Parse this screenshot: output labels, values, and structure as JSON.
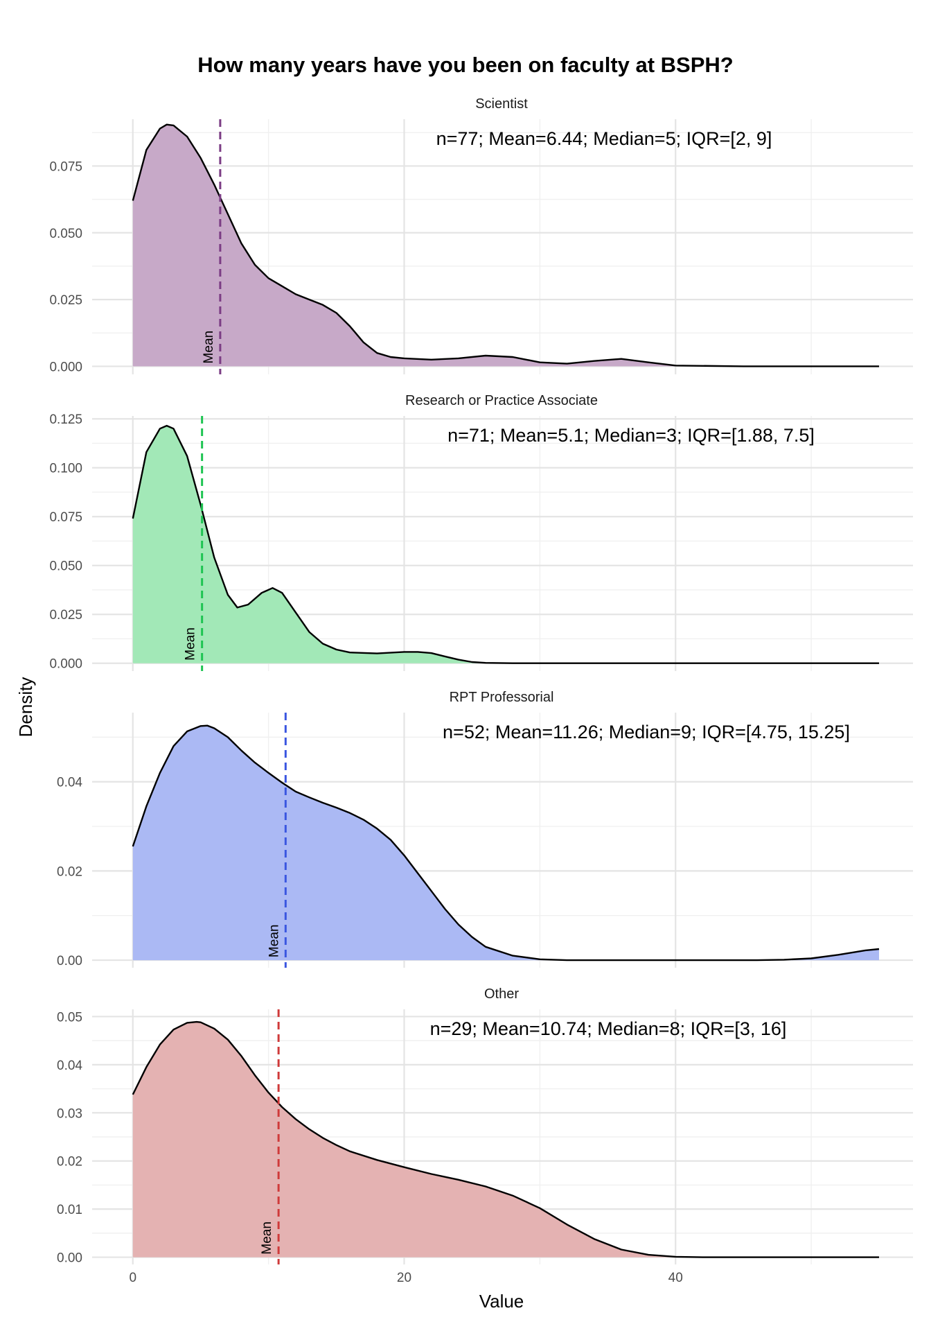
{
  "chart_data": {
    "type": "area",
    "title": "How many years have you been on faculty at BSPH?",
    "xlabel": "Value",
    "ylabel": "Density",
    "xlim": [
      -3,
      57.5
    ],
    "x_ticks": [
      0,
      20,
      40
    ],
    "x_tick_labels": [
      "0",
      "20",
      "40"
    ],
    "grid": true,
    "mean_label": "Mean",
    "panels": [
      {
        "name": "Scientist",
        "stats": "n=77; Mean=6.44; Median=5; IQR=[2, 9]",
        "color": "#7b3c84",
        "fill": "#c7a9c8",
        "mean": 6.44,
        "ylim": [
          -0.003,
          0.0925
        ],
        "y_ticks": [
          0,
          0.025,
          0.05,
          0.075
        ],
        "y_tick_labels": [
          "0.000",
          "0.025",
          "0.050",
          "0.075"
        ],
        "x": [
          0,
          1,
          2,
          2.5,
          3,
          4,
          5,
          6,
          7,
          8,
          9,
          10,
          11,
          12,
          13,
          14,
          15,
          16,
          17,
          18,
          19,
          20,
          22,
          24,
          26,
          28,
          30,
          32,
          34,
          36,
          38,
          40,
          45,
          50,
          55
        ],
        "y": [
          0.062,
          0.081,
          0.089,
          0.0905,
          0.0902,
          0.086,
          0.078,
          0.068,
          0.057,
          0.046,
          0.038,
          0.033,
          0.03,
          0.027,
          0.025,
          0.023,
          0.02,
          0.015,
          0.009,
          0.005,
          0.0035,
          0.003,
          0.0025,
          0.003,
          0.004,
          0.0035,
          0.0015,
          0.001,
          0.002,
          0.0028,
          0.0015,
          0.0003,
          0,
          0,
          0
        ]
      },
      {
        "name": "Research or Practice Associate",
        "stats": "n=71; Mean=5.1; Median=3; IQR=[1.88, 7.5]",
        "color": "#1ec452",
        "fill": "#a2e8b7",
        "mean": 5.1,
        "ylim": [
          -0.004,
          0.1265
        ],
        "y_ticks": [
          0,
          0.025,
          0.05,
          0.075,
          0.1,
          0.125
        ],
        "y_tick_labels": [
          "0.000",
          "0.025",
          "0.050",
          "0.075",
          "0.100",
          "0.125"
        ],
        "x": [
          0,
          1,
          2,
          2.5,
          3,
          4,
          5,
          6,
          7,
          7.7,
          8.5,
          9.5,
          10.3,
          11,
          12,
          13,
          14,
          15,
          16,
          18,
          20,
          21,
          22,
          23,
          24,
          25,
          26,
          28,
          30,
          35,
          40,
          45,
          50,
          55
        ],
        "y": [
          0.074,
          0.108,
          0.12,
          0.1215,
          0.12,
          0.106,
          0.081,
          0.054,
          0.035,
          0.0285,
          0.03,
          0.036,
          0.0385,
          0.036,
          0.026,
          0.016,
          0.01,
          0.007,
          0.0055,
          0.005,
          0.0058,
          0.0058,
          0.0052,
          0.0035,
          0.0018,
          0.0006,
          0.0002,
          0,
          0,
          0,
          0,
          0,
          0,
          0
        ]
      },
      {
        "name": "RPT Professorial",
        "stats": "n=52; Mean=11.26; Median=9; IQR=[4.75, 15.25]",
        "color": "#3a56e0",
        "fill": "#abb9f4",
        "mean": 11.26,
        "ylim": [
          -0.0017,
          0.0555
        ],
        "y_ticks": [
          0,
          0.02,
          0.04
        ],
        "y_tick_labels": [
          "0.00",
          "0.02",
          "0.04"
        ],
        "x": [
          0,
          1,
          2,
          3,
          4,
          5,
          5.5,
          6,
          7,
          8,
          9,
          10,
          11,
          12,
          13,
          14,
          15,
          16,
          17,
          18,
          19,
          20,
          21,
          22,
          23,
          24,
          25,
          26,
          28,
          30,
          32,
          34,
          36,
          38,
          40,
          42,
          44,
          46,
          48,
          50,
          52,
          54,
          55
        ],
        "y": [
          0.0255,
          0.0345,
          0.042,
          0.048,
          0.0513,
          0.0525,
          0.0526,
          0.052,
          0.05,
          0.047,
          0.0443,
          0.042,
          0.0398,
          0.0378,
          0.0365,
          0.0353,
          0.0342,
          0.033,
          0.0315,
          0.0295,
          0.027,
          0.0235,
          0.0195,
          0.0155,
          0.0115,
          0.008,
          0.0052,
          0.003,
          0.001,
          0.0002,
          0,
          0,
          0,
          0,
          0,
          0,
          0,
          0,
          0.0001,
          0.0004,
          0.0012,
          0.0022,
          0.0025
        ]
      },
      {
        "name": "Other",
        "stats": "n=29; Mean=10.74; Median=8; IQR=[3, 16]",
        "color": "#cf3a3a",
        "fill": "#e4b2b2",
        "mean": 10.74,
        "ylim": [
          -0.0015,
          0.0515
        ],
        "y_ticks": [
          0,
          0.01,
          0.02,
          0.03,
          0.04,
          0.05
        ],
        "y_tick_labels": [
          "0.00",
          "0.01",
          "0.02",
          "0.03",
          "0.04",
          "0.05"
        ],
        "x": [
          0,
          1,
          2,
          3,
          4,
          4.7,
          5,
          6,
          7,
          8,
          9,
          10,
          11,
          12,
          13,
          14,
          15,
          16,
          18,
          20,
          22,
          24,
          26,
          28,
          30,
          32,
          34,
          36,
          38,
          40,
          42,
          45,
          50,
          55
        ],
        "y": [
          0.0338,
          0.0395,
          0.0442,
          0.0473,
          0.0487,
          0.0489,
          0.0488,
          0.0475,
          0.0452,
          0.0418,
          0.0378,
          0.0342,
          0.0312,
          0.0287,
          0.0266,
          0.0248,
          0.0233,
          0.022,
          0.0202,
          0.0187,
          0.0173,
          0.0161,
          0.0147,
          0.0128,
          0.0102,
          0.0068,
          0.0038,
          0.0016,
          0.0005,
          0.0001,
          0,
          0,
          0,
          0
        ]
      }
    ]
  }
}
